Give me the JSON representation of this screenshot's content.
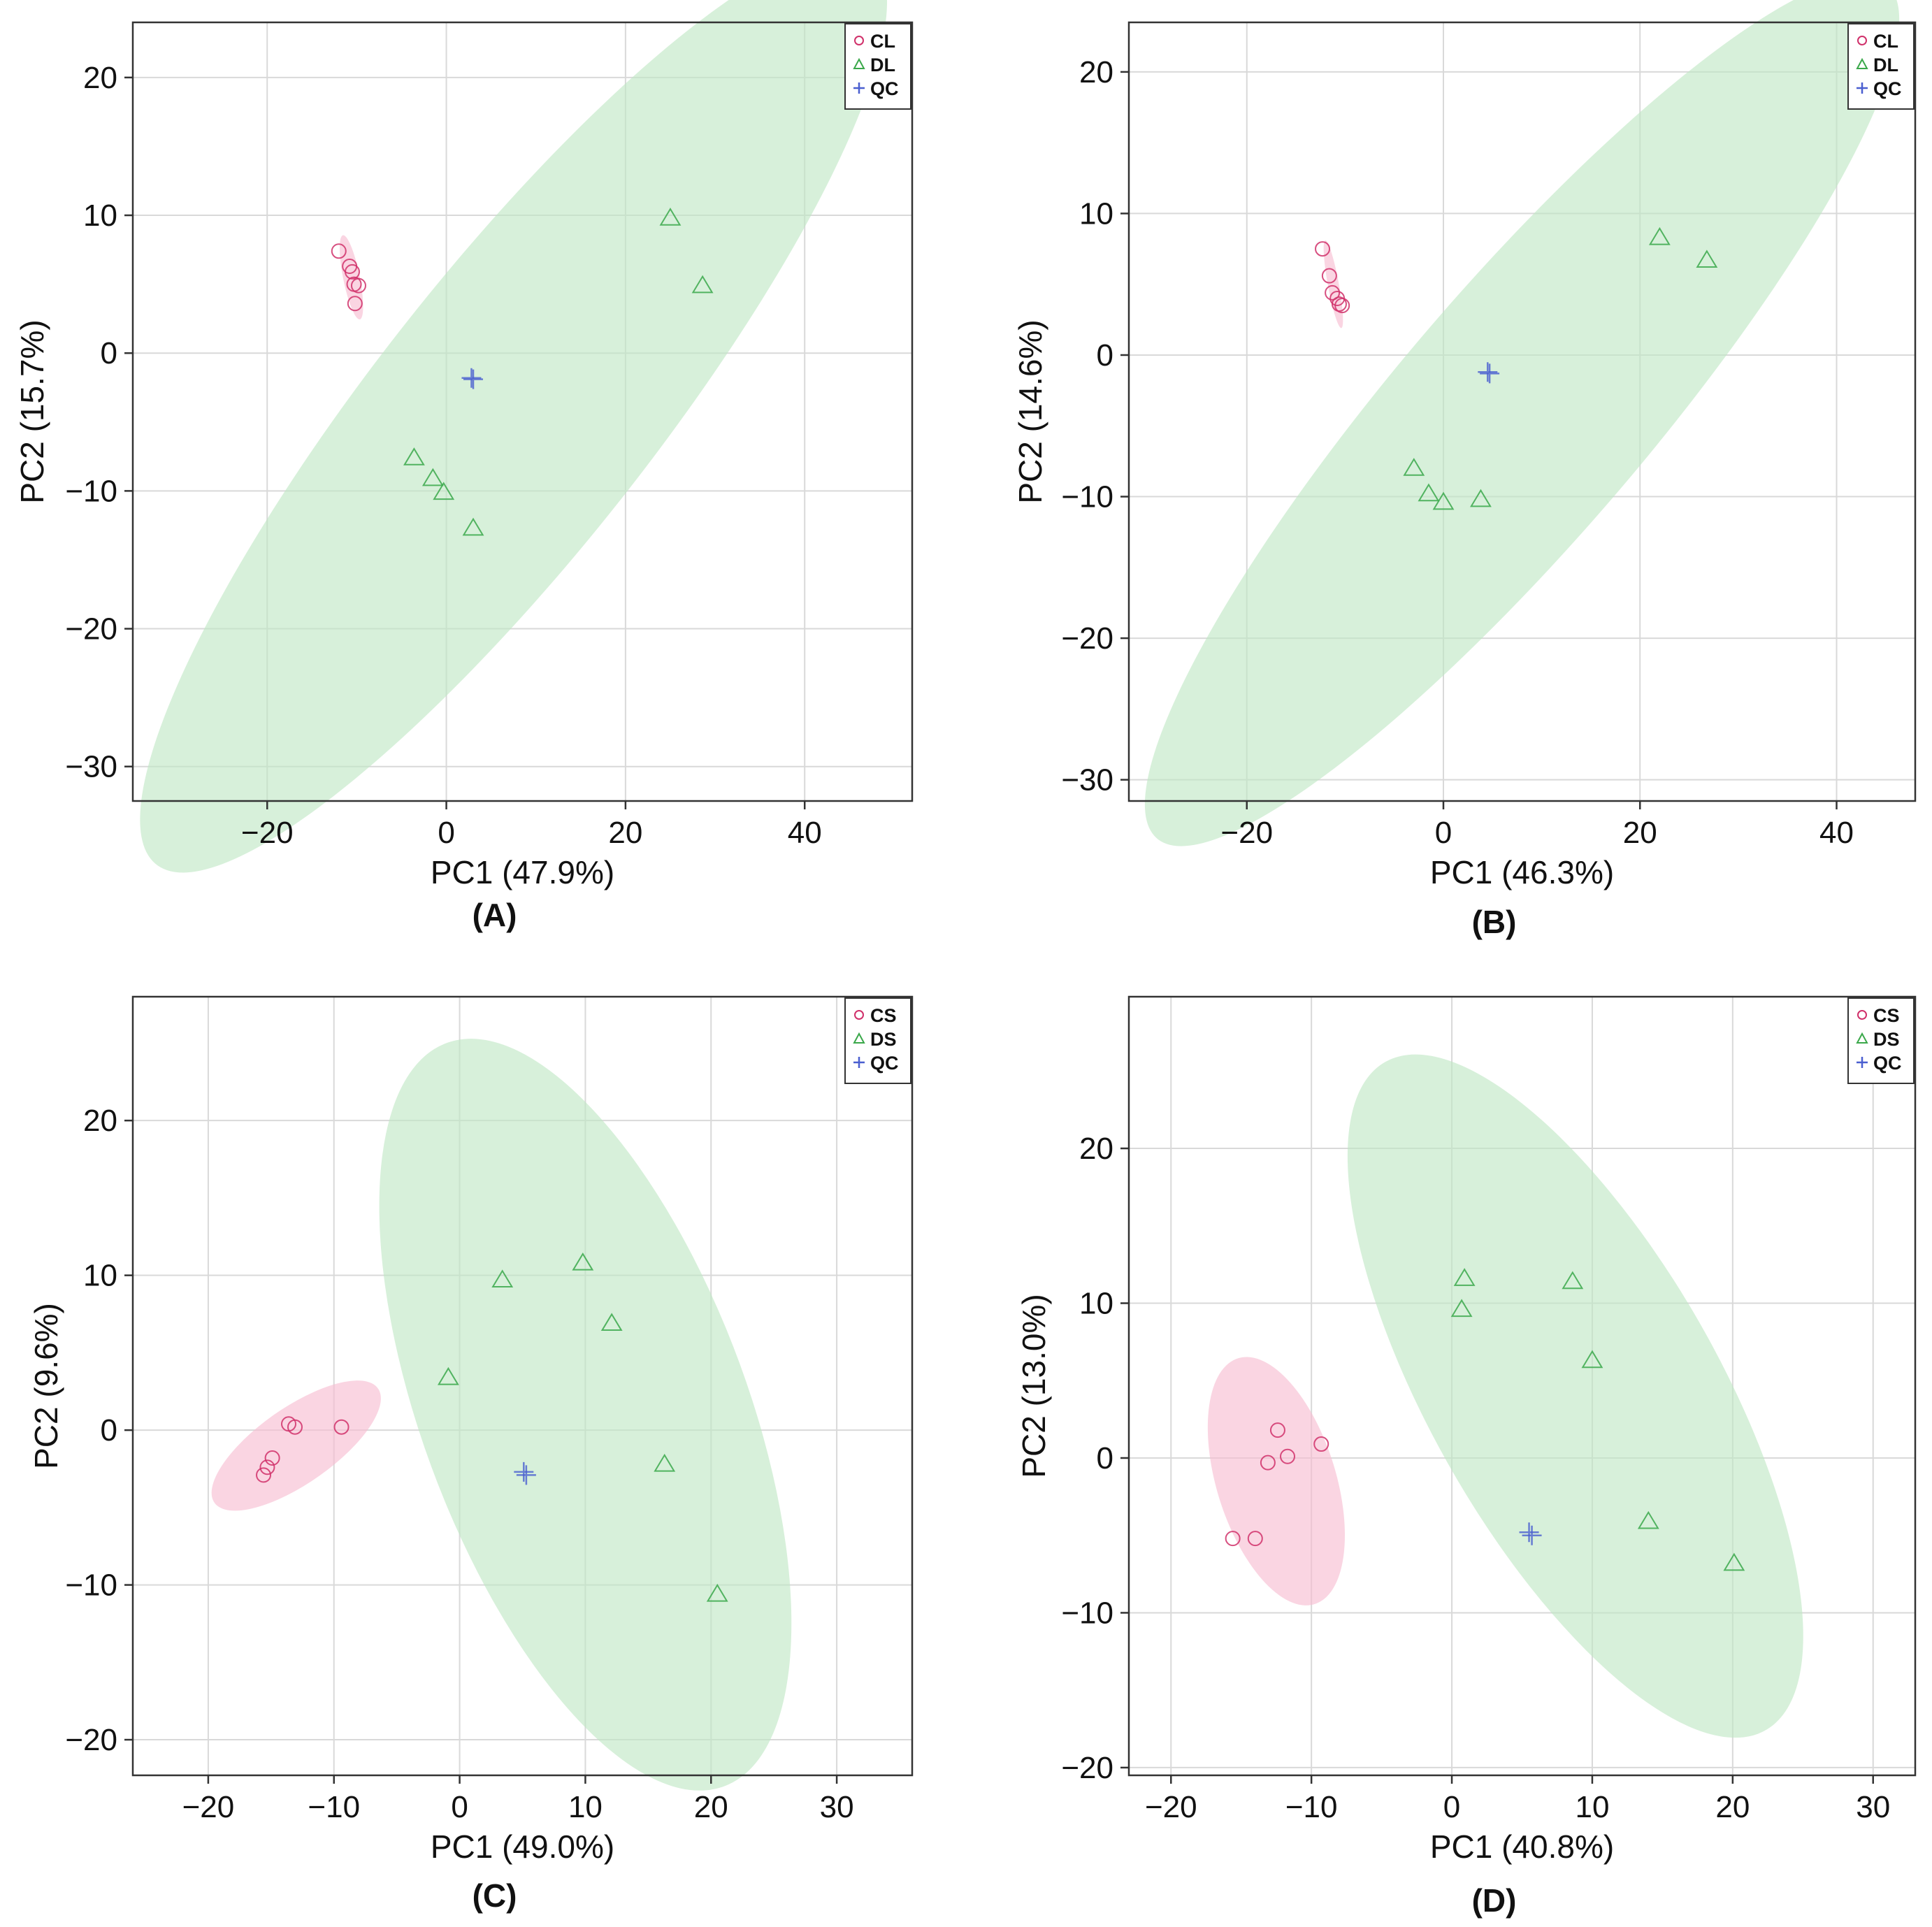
{
  "figure": {
    "colors": {
      "group1": "#d0306a",
      "group1_fill": "#f7bcd0",
      "group2": "#3aa84a",
      "group2_fill": "#bfe6c4",
      "qc": "#4a5fd0",
      "grid": "#d9d9d9",
      "axis": "#333333"
    }
  },
  "chart_data": [
    {
      "type": "scatter",
      "panel_caption": "(A)",
      "xlabel": "PC1 (47.9%)",
      "ylabel": "PC2 (15.7%)",
      "xlim": [
        -35,
        52
      ],
      "ylim": [
        -32.5,
        24
      ],
      "xticks": [
        -20,
        0,
        20,
        40
      ],
      "yticks": [
        -30,
        -20,
        -10,
        0,
        10,
        20
      ],
      "grid": true,
      "legend_position": "top-right",
      "series": [
        {
          "name": "CL",
          "marker": "circle",
          "color_key": "group1",
          "points": [
            [
              -12,
              7.4
            ],
            [
              -10.8,
              6.3
            ],
            [
              -10.5,
              5.9
            ],
            [
              -10.3,
              5.0
            ],
            [
              -9.8,
              4.9
            ],
            [
              -10.2,
              3.6
            ]
          ],
          "ellipse": {
            "cx": -10.6,
            "cy": 5.5,
            "rx": 3.2,
            "ry": 0.9,
            "angle_deg": -72
          }
        },
        {
          "name": "DL",
          "marker": "triangle",
          "color_key": "group2",
          "points": [
            [
              25.0,
              9.8
            ],
            [
              28.6,
              4.9
            ],
            [
              -3.6,
              -7.6
            ],
            [
              -1.5,
              -9.1
            ],
            [
              -0.3,
              -10.1
            ],
            [
              3.0,
              -12.7
            ]
          ],
          "ellipse": {
            "cx": 7.5,
            "cy": -4.2,
            "rx": 52.0,
            "ry": 12.5,
            "angle_deg": 38
          }
        },
        {
          "name": "QC",
          "marker": "plus",
          "color_key": "qc",
          "points": [
            [
              2.8,
              -1.8
            ],
            [
              3.0,
              -1.9
            ]
          ]
        }
      ]
    },
    {
      "type": "scatter",
      "panel_caption": "(B)",
      "xlabel": "PC1 (46.3%)",
      "ylabel": "PC2 (14.6%)",
      "xlim": [
        -32,
        48
      ],
      "ylim": [
        -31.5,
        23.5
      ],
      "xticks": [
        -20,
        0,
        20,
        40
      ],
      "yticks": [
        -30,
        -20,
        -10,
        0,
        10,
        20
      ],
      "grid": true,
      "legend_position": "top-right",
      "series": [
        {
          "name": "CL",
          "marker": "circle",
          "color_key": "group1",
          "points": [
            [
              -12.3,
              7.5
            ],
            [
              -11.6,
              5.6
            ],
            [
              -11.3,
              4.4
            ],
            [
              -10.8,
              4.0
            ],
            [
              -10.6,
              3.6
            ],
            [
              -10.3,
              3.5
            ]
          ],
          "ellipse": {
            "cx": -11.2,
            "cy": 5.0,
            "rx": 3.2,
            "ry": 0.55,
            "angle_deg": -75
          }
        },
        {
          "name": "DL",
          "marker": "triangle",
          "color_key": "group2",
          "points": [
            [
              22.0,
              8.3
            ],
            [
              26.8,
              6.7
            ],
            [
              -3.0,
              -8.0
            ],
            [
              -1.5,
              -9.8
            ],
            [
              0.0,
              -10.4
            ],
            [
              3.8,
              -10.2
            ]
          ],
          "ellipse": {
            "cx": 8.0,
            "cy": -4.0,
            "rx": 48.0,
            "ry": 10.5,
            "angle_deg": 38
          }
        },
        {
          "name": "QC",
          "marker": "plus",
          "color_key": "qc",
          "points": [
            [
              4.5,
              -1.2
            ],
            [
              4.7,
              -1.3
            ]
          ]
        }
      ]
    },
    {
      "type": "scatter",
      "panel_caption": "(C)",
      "xlabel": "PC1 (49.0%)",
      "ylabel": "PC2 (9.6%)",
      "xlim": [
        -26,
        36
      ],
      "ylim": [
        -22.3,
        28
      ],
      "xticks": [
        -20,
        -10,
        0,
        10,
        20,
        30
      ],
      "yticks": [
        -20,
        -10,
        0,
        10,
        20
      ],
      "grid": true,
      "legend_position": "top-right",
      "series": [
        {
          "name": "CS",
          "marker": "circle",
          "color_key": "group1",
          "points": [
            [
              -13.6,
              0.4
            ],
            [
              -13.1,
              0.2
            ],
            [
              -9.4,
              0.2
            ],
            [
              -14.9,
              -1.8
            ],
            [
              -15.3,
              -2.4
            ],
            [
              -15.6,
              -2.9
            ]
          ],
          "ellipse": {
            "cx": -13.0,
            "cy": -1.0,
            "rx": 7.5,
            "ry": 2.6,
            "angle_deg": 28
          }
        },
        {
          "name": "DS",
          "marker": "triangle",
          "color_key": "group2",
          "points": [
            [
              9.8,
              10.8
            ],
            [
              3.4,
              9.7
            ],
            [
              12.1,
              6.9
            ],
            [
              -0.9,
              3.4
            ],
            [
              16.3,
              -2.2
            ],
            [
              20.5,
              -10.6
            ]
          ],
          "ellipse": {
            "cx": 10.0,
            "cy": 1.0,
            "rx": 12.5,
            "ry": 26.5,
            "angle_deg": 27
          }
        },
        {
          "name": "QC",
          "marker": "plus",
          "color_key": "qc",
          "points": [
            [
              5.1,
              -2.7
            ],
            [
              5.3,
              -2.9
            ]
          ]
        }
      ]
    },
    {
      "type": "scatter",
      "panel_caption": "(D)",
      "xlabel": "PC1 (40.8%)",
      "ylabel": "PC2 (13.0%)",
      "xlim": [
        -23,
        33
      ],
      "ylim": [
        -20.5,
        29.8
      ],
      "xticks": [
        -20,
        -10,
        0,
        10,
        20,
        30
      ],
      "yticks": [
        -20,
        -10,
        0,
        10,
        20
      ],
      "grid": true,
      "legend_position": "top-right",
      "series": [
        {
          "name": "CS",
          "marker": "circle",
          "color_key": "group1",
          "points": [
            [
              -12.4,
              1.8
            ],
            [
              -9.3,
              0.9
            ],
            [
              -11.7,
              0.1
            ],
            [
              -13.1,
              -0.3
            ],
            [
              -15.6,
              -5.2
            ],
            [
              -14.0,
              -5.2
            ]
          ],
          "ellipse": {
            "cx": -12.5,
            "cy": -1.5,
            "rx": 4.2,
            "ry": 8.4,
            "angle_deg": 20
          }
        },
        {
          "name": "DS",
          "marker": "triangle",
          "color_key": "group2",
          "points": [
            [
              0.9,
              11.6
            ],
            [
              8.6,
              11.4
            ],
            [
              0.7,
              9.6
            ],
            [
              10.0,
              6.3
            ],
            [
              14.0,
              -4.1
            ],
            [
              20.1,
              -6.8
            ]
          ],
          "ellipse": {
            "cx": 8.8,
            "cy": 4.0,
            "rx": 10.0,
            "ry": 25.5,
            "angle_deg": 33
          }
        },
        {
          "name": "QC",
          "marker": "plus",
          "color_key": "qc",
          "points": [
            [
              5.5,
              -4.8
            ],
            [
              5.7,
              -5.0
            ]
          ]
        }
      ]
    }
  ]
}
